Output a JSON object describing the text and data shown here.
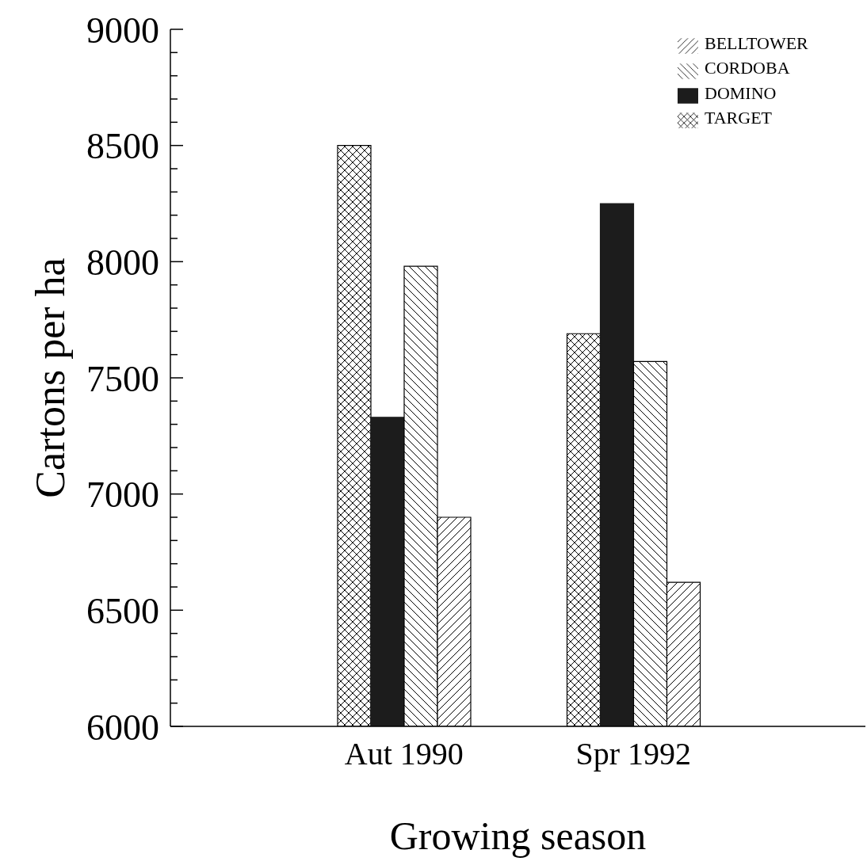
{
  "chart_data": {
    "type": "bar",
    "xlabel": "Growing season",
    "ylabel": "Cartons per ha",
    "categories": [
      "Aut 1990",
      "Spr 1992"
    ],
    "series": [
      {
        "name": "TARGET",
        "color": "#000000",
        "values": [
          8500,
          7690
        ]
      },
      {
        "name": "DOMINO",
        "color": "#1c1c1c",
        "values": [
          7330,
          8250
        ]
      },
      {
        "name": "CORDOBA",
        "color": "#000000",
        "values": [
          7980,
          7570
        ]
      },
      {
        "name": "BELLTOWER",
        "color": "#000000",
        "values": [
          6900,
          6620
        ]
      }
    ],
    "ylim": [
      6000,
      9000
    ],
    "yticks": [
      6000,
      {
        "value": 6100,
        "label": null
      },
      {
        "value": 6200,
        "label": null
      },
      {
        "value": 6300,
        "label": null
      },
      {
        "value": 6400,
        "label": null
      },
      6500,
      {
        "value": 6600,
        "label": null
      },
      {
        "value": 6700,
        "label": null
      },
      {
        "value": 6800,
        "label": null
      },
      {
        "value": 6900,
        "label": null
      },
      7000,
      {
        "value": 7100,
        "label": null
      },
      {
        "value": 7200,
        "label": null
      },
      {
        "value": 7300,
        "label": null
      },
      {
        "value": 7400,
        "label": null
      },
      7500,
      {
        "value": 7600,
        "label": null
      },
      {
        "value": 7700,
        "label": null
      },
      {
        "value": 7800,
        "label": null
      },
      {
        "value": 7900,
        "label": null
      },
      8000,
      {
        "value": 8100,
        "label": null
      },
      {
        "value": 8200,
        "label": null
      },
      {
        "value": 8300,
        "label": null
      },
      {
        "value": 8400,
        "label": null
      },
      8500,
      {
        "value": 8600,
        "label": null
      },
      {
        "value": 8700,
        "label": null
      },
      {
        "value": 8800,
        "label": null
      },
      {
        "value": 8900,
        "label": null
      },
      9000
    ],
    "grid": false,
    "legend": "top right"
  }
}
